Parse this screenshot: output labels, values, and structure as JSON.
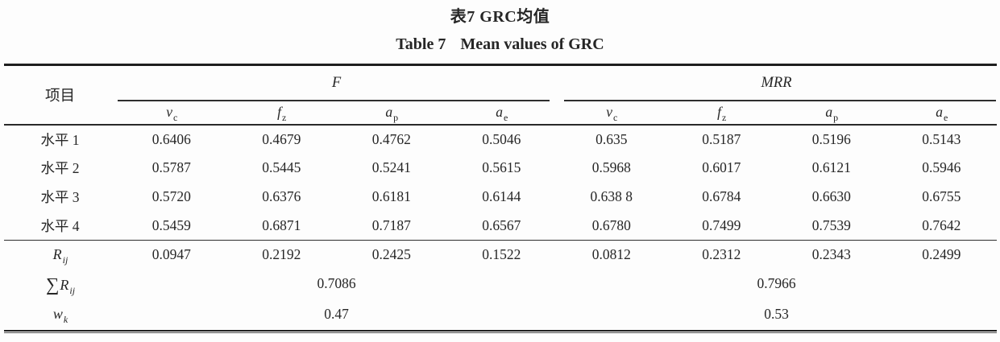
{
  "page": {
    "title_zh": "表7 GRC均值",
    "title_en_prefix": "Table 7",
    "title_en_main": "Mean values of GRC"
  },
  "table": {
    "item_header": "项目",
    "groups": [
      {
        "label": "F",
        "subcols": [
          {
            "base": "v",
            "sub": "c"
          },
          {
            "base": "f",
            "sub": "z"
          },
          {
            "base": "a",
            "sub": "p"
          },
          {
            "base": "a",
            "sub": "e"
          }
        ]
      },
      {
        "label": "MRR",
        "subcols": [
          {
            "base": "v",
            "sub": "c"
          },
          {
            "base": "f",
            "sub": "z"
          },
          {
            "base": "a",
            "sub": "p"
          },
          {
            "base": "a",
            "sub": "e"
          }
        ]
      }
    ],
    "level_rows": [
      {
        "label": "水平 1",
        "values": [
          "0.6406",
          "0.4679",
          "0.4762",
          "0.5046",
          "0.635",
          "0.5187",
          "0.5196",
          "0.5143"
        ]
      },
      {
        "label": "水平 2",
        "values": [
          "0.5787",
          "0.5445",
          "0.5241",
          "0.5615",
          "0.5968",
          "0.6017",
          "0.6121",
          "0.5946"
        ]
      },
      {
        "label": "水平 3",
        "values": [
          "0.5720",
          "0.6376",
          "0.6181",
          "0.6144",
          "0.638 8",
          "0.6784",
          "0.6630",
          "0.6755"
        ]
      },
      {
        "label": "水平 4",
        "values": [
          "0.5459",
          "0.6871",
          "0.7187",
          "0.6567",
          "0.6780",
          "0.7499",
          "0.7539",
          "0.7642"
        ]
      }
    ],
    "range_row": {
      "label_base": "R",
      "label_sub": "ij",
      "values": [
        "0.0947",
        "0.2192",
        "0.2425",
        "0.1522",
        "0.0812",
        "0.2312",
        "0.2343",
        "0.2499"
      ]
    },
    "sum_row": {
      "sigma": "∑",
      "label_base": "R",
      "label_sub": "ij",
      "f_value": "0.7086",
      "mrr_value": "0.7966"
    },
    "weight_row": {
      "label_base": "w",
      "label_sub": "k",
      "f_value": "0.47",
      "mrr_value": "0.53"
    }
  }
}
